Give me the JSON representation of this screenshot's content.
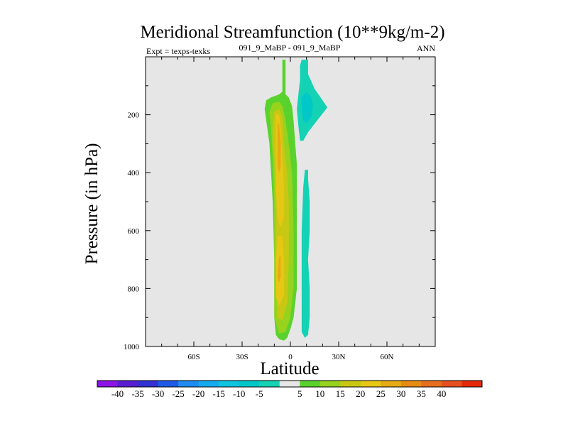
{
  "chart_data": {
    "type": "contour",
    "title": "Meridional Streamfunction (10**9kg/m-2)",
    "subtitle_left": "Expt = texps-texks",
    "subtitle_center": "091_9_MaBP - 091_9_MaBP",
    "subtitle_right": "ANN",
    "xlabel": "Latitude",
    "ylabel": "Pressure (in hPa)",
    "xlim": [
      -90,
      90
    ],
    "ylim": [
      1000,
      0
    ],
    "x_ticks": [
      {
        "value": -60,
        "label": "60S"
      },
      {
        "value": -30,
        "label": "30S"
      },
      {
        "value": 0,
        "label": "0"
      },
      {
        "value": 30,
        "label": "30N"
      },
      {
        "value": 60,
        "label": "60N"
      }
    ],
    "y_ticks": [
      {
        "value": 200,
        "label": "200"
      },
      {
        "value": 400,
        "label": "400"
      },
      {
        "value": 600,
        "label": "600"
      },
      {
        "value": 800,
        "label": "800"
      },
      {
        "value": 1000,
        "label": "1000"
      }
    ],
    "plot_background": "#e6e6e6",
    "contour_levels": [
      -40,
      -35,
      -30,
      -25,
      -20,
      -15,
      -10,
      -5,
      5,
      10,
      15,
      20,
      25,
      30,
      35,
      40
    ],
    "colorbar_colors": [
      "#8c14e6",
      "#5a1ed2",
      "#3232d2",
      "#1e5ae6",
      "#1e8cf0",
      "#14aaf0",
      "#10c4e0",
      "#00c8c8",
      "#14d2b4",
      "#e6e6e6",
      "#5ad22d",
      "#96d21e",
      "#c8c814",
      "#e6c814",
      "#e6aa14",
      "#e68c14",
      "#e66e1e",
      "#e6501e",
      "#e6280a"
    ],
    "regions": [
      {
        "level": 5,
        "color": "#5ad22d",
        "points": [
          [
            -5,
            10
          ],
          [
            -3,
            10
          ],
          [
            -3,
            130
          ],
          [
            -1,
            140
          ],
          [
            1,
            170
          ],
          [
            2,
            220
          ],
          [
            3,
            300
          ],
          [
            4,
            370
          ],
          [
            4,
            800
          ],
          [
            2,
            900
          ],
          [
            0,
            940
          ],
          [
            -2,
            970
          ],
          [
            -4,
            980
          ],
          [
            -7,
            975
          ],
          [
            -9,
            960
          ],
          [
            -10,
            900
          ],
          [
            -10,
            820
          ],
          [
            -10,
            700
          ],
          [
            -11,
            500
          ],
          [
            -12,
            400
          ],
          [
            -13,
            300
          ],
          [
            -15,
            220
          ],
          [
            -16,
            180
          ],
          [
            -15,
            150
          ],
          [
            -12,
            140
          ],
          [
            -7,
            130
          ],
          [
            -5,
            120
          ]
        ]
      },
      {
        "level": 10,
        "color": "#96d21e",
        "points": [
          [
            -11,
            160
          ],
          [
            -7,
            155
          ],
          [
            -5,
            170
          ],
          [
            -3,
            220
          ],
          [
            -1,
            300
          ],
          [
            1,
            400
          ],
          [
            2,
            600
          ],
          [
            2,
            800
          ],
          [
            0,
            900
          ],
          [
            -3,
            950
          ],
          [
            -7,
            955
          ],
          [
            -10,
            900
          ],
          [
            -10,
            700
          ],
          [
            -10,
            500
          ],
          [
            -11,
            350
          ],
          [
            -12,
            250
          ],
          [
            -13,
            190
          ]
        ]
      },
      {
        "level": 15,
        "color": "#c8c814",
        "points": [
          [
            -10,
            190
          ],
          [
            -7,
            180
          ],
          [
            -5,
            210
          ],
          [
            -4,
            300
          ],
          [
            -2,
            400
          ],
          [
            -1,
            500
          ],
          [
            -1,
            700
          ],
          [
            -2,
            850
          ],
          [
            -5,
            910
          ],
          [
            -8,
            900
          ],
          [
            -9,
            750
          ],
          [
            -9,
            550
          ],
          [
            -10,
            350
          ],
          [
            -11,
            250
          ]
        ]
      },
      {
        "level": 20,
        "color": "#e6c814",
        "points": [
          [
            -9,
            200
          ],
          [
            -7,
            200
          ],
          [
            -6,
            250
          ],
          [
            -5,
            350
          ],
          [
            -4,
            450
          ],
          [
            -4,
            550
          ],
          [
            -6,
            590
          ],
          [
            -8,
            560
          ],
          [
            -9,
            450
          ],
          [
            -9,
            300
          ]
        ]
      },
      {
        "level": 20,
        "color": "#e6c814",
        "points": [
          [
            -8,
            620
          ],
          [
            -5,
            620
          ],
          [
            -4,
            700
          ],
          [
            -4,
            820
          ],
          [
            -7,
            860
          ],
          [
            -9,
            830
          ],
          [
            -9,
            700
          ]
        ]
      },
      {
        "level": 25,
        "color": "#e6aa14",
        "points": [
          [
            -8,
            230
          ],
          [
            -7,
            230
          ],
          [
            -6,
            300
          ],
          [
            -6,
            380
          ],
          [
            -7,
            400
          ],
          [
            -8,
            380
          ],
          [
            -8,
            300
          ]
        ]
      },
      {
        "level": 25,
        "color": "#e6aa14",
        "points": [
          [
            -7,
            690
          ],
          [
            -6,
            690
          ],
          [
            -6,
            760
          ],
          [
            -7,
            780
          ],
          [
            -8,
            760
          ]
        ]
      },
      {
        "level": -5,
        "color": "#14d2b4",
        "points": [
          [
            7,
            10
          ],
          [
            11,
            10
          ],
          [
            11,
            60
          ],
          [
            15,
            110
          ],
          [
            20,
            150
          ],
          [
            23,
            175
          ],
          [
            18,
            210
          ],
          [
            11,
            260
          ],
          [
            8,
            290
          ],
          [
            6,
            290
          ],
          [
            5,
            240
          ],
          [
            4,
            180
          ],
          [
            5,
            130
          ],
          [
            6,
            80
          ],
          [
            6,
            30
          ]
        ]
      },
      {
        "level": -10,
        "color": "#00c8c8",
        "points": [
          [
            7,
            140
          ],
          [
            10,
            120
          ],
          [
            13,
            140
          ],
          [
            14,
            170
          ],
          [
            13,
            210
          ],
          [
            10,
            230
          ],
          [
            8,
            220
          ],
          [
            7,
            180
          ]
        ]
      },
      {
        "level": -5,
        "color": "#14d2b4",
        "points": [
          [
            9,
            390
          ],
          [
            11,
            390
          ],
          [
            11,
            420
          ],
          [
            12,
            500
          ],
          [
            12,
            600
          ],
          [
            11,
            700
          ],
          [
            12,
            800
          ],
          [
            12,
            900
          ],
          [
            11,
            960
          ],
          [
            9,
            970
          ],
          [
            7,
            950
          ],
          [
            7,
            800
          ],
          [
            7,
            600
          ],
          [
            8,
            450
          ]
        ]
      }
    ]
  }
}
